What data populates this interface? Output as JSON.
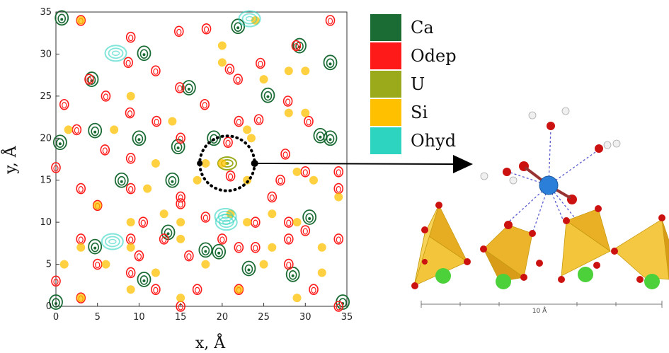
{
  "chart_data": {
    "type": "scatter",
    "xlabel": "x, Å",
    "ylabel": "y, Å",
    "xlim": [
      0,
      35
    ],
    "ylim": [
      0,
      35
    ],
    "xticks": [
      0,
      5,
      10,
      15,
      20,
      25,
      30,
      35
    ],
    "yticks": [
      0,
      5,
      10,
      15,
      20,
      25,
      30,
      35
    ],
    "legend": [
      {
        "name": "Ca",
        "color": "#1b6b35"
      },
      {
        "name": "Odep",
        "color": "#ff1a1a"
      },
      {
        "name": "U",
        "color": "#9aaa1a"
      },
      {
        "name": "Si",
        "color": "#ffc000"
      },
      {
        "name": "Ohyd",
        "color": "#2dd4bf"
      }
    ],
    "highlight": {
      "x": 20.6,
      "y": 17.0,
      "r": 3.0
    },
    "series": [
      {
        "name": "Ca",
        "color": "#1b6b35",
        "points": [
          [
            0.7,
            34.3
          ],
          [
            4.3,
            27.0
          ],
          [
            10.6,
            30.1
          ],
          [
            21.9,
            33.3
          ],
          [
            29.3,
            31.0
          ],
          [
            33,
            29
          ],
          [
            19.6,
            6.5
          ],
          [
            33,
            20
          ],
          [
            0.5,
            19.5
          ],
          [
            4.7,
            20.9
          ],
          [
            10,
            20
          ],
          [
            14.7,
            19
          ],
          [
            19,
            20
          ],
          [
            25.5,
            25.1
          ],
          [
            16,
            26
          ],
          [
            31.8,
            20.3
          ],
          [
            7.9,
            15
          ],
          [
            14,
            15
          ],
          [
            30.5,
            10.6
          ],
          [
            13.5,
            8.8
          ],
          [
            23.2,
            4.5
          ],
          [
            10.6,
            3.2
          ],
          [
            4.7,
            7.1
          ],
          [
            18,
            6.7
          ],
          [
            28.5,
            3.8
          ],
          [
            34.5,
            0.5
          ],
          [
            0,
            0.5
          ]
        ]
      },
      {
        "name": "Odep",
        "color": "#ff1a1a",
        "points": [
          [
            3,
            34
          ],
          [
            9,
            32
          ],
          [
            14.8,
            32.7
          ],
          [
            18.1,
            33
          ],
          [
            33,
            34
          ],
          [
            28.9,
            31
          ],
          [
            8.7,
            29
          ],
          [
            12,
            28
          ],
          [
            4,
            27
          ],
          [
            20.9,
            28.2
          ],
          [
            24.6,
            28.9
          ],
          [
            21.9,
            27.0
          ],
          [
            6.0,
            25
          ],
          [
            14.9,
            26
          ],
          [
            17.9,
            24
          ],
          [
            24.4,
            22.2
          ],
          [
            27.9,
            24.4
          ],
          [
            1,
            24
          ],
          [
            8.9,
            23
          ],
          [
            12.1,
            22
          ],
          [
            22,
            22
          ],
          [
            30.4,
            22
          ],
          [
            2.5,
            21
          ],
          [
            5.9,
            18.6
          ],
          [
            9,
            17.6
          ],
          [
            15,
            20
          ],
          [
            20.7,
            19.5
          ],
          [
            27.6,
            18.1
          ],
          [
            0,
            16.5
          ],
          [
            3,
            14
          ],
          [
            9,
            14
          ],
          [
            15,
            13
          ],
          [
            21,
            15.5
          ],
          [
            27,
            15
          ],
          [
            30,
            16
          ],
          [
            34,
            16
          ],
          [
            34,
            14
          ],
          [
            5,
            12
          ],
          [
            10.5,
            10
          ],
          [
            15,
            12.2
          ],
          [
            18,
            10.6
          ],
          [
            26,
            13
          ],
          [
            24,
            10
          ],
          [
            28,
            10
          ],
          [
            30,
            9
          ],
          [
            3,
            8
          ],
          [
            9,
            8
          ],
          [
            13,
            8
          ],
          [
            20,
            8
          ],
          [
            28,
            8
          ],
          [
            34,
            8
          ],
          [
            10,
            6
          ],
          [
            16,
            6
          ],
          [
            22,
            7
          ],
          [
            24,
            7
          ],
          [
            0,
            3
          ],
          [
            5,
            5
          ],
          [
            9,
            4
          ],
          [
            12,
            2
          ],
          [
            17,
            2
          ],
          [
            22,
            2
          ],
          [
            28,
            5
          ],
          [
            31,
            2
          ],
          [
            3,
            1
          ],
          [
            15,
            0
          ],
          [
            34,
            0
          ]
        ]
      },
      {
        "name": "U",
        "color": "#9aaa1a",
        "points": [
          [
            20.6,
            17.0
          ]
        ]
      },
      {
        "name": "Si",
        "color": "#ffc000",
        "points": [
          [
            3,
            34
          ],
          [
            24,
            34
          ],
          [
            20,
            29
          ],
          [
            28,
            28
          ],
          [
            30,
            28
          ],
          [
            20,
            31
          ],
          [
            9,
            25
          ],
          [
            25,
            27
          ],
          [
            1.5,
            21
          ],
          [
            7,
            21
          ],
          [
            14,
            22
          ],
          [
            23,
            21
          ],
          [
            28,
            23
          ],
          [
            30,
            23
          ],
          [
            20,
            17
          ],
          [
            23.5,
            20
          ],
          [
            12,
            17
          ],
          [
            18,
            17
          ],
          [
            29,
            16
          ],
          [
            11,
            14
          ],
          [
            17,
            15
          ],
          [
            23,
            15
          ],
          [
            31,
            15
          ],
          [
            5,
            12
          ],
          [
            13,
            11
          ],
          [
            21,
            11
          ],
          [
            26,
            11
          ],
          [
            34,
            13
          ],
          [
            9,
            10
          ],
          [
            15,
            10
          ],
          [
            23,
            10
          ],
          [
            29,
            10
          ],
          [
            3,
            7
          ],
          [
            9,
            7
          ],
          [
            15,
            8
          ],
          [
            26,
            7
          ],
          [
            32,
            7
          ],
          [
            1,
            5
          ],
          [
            6,
            5
          ],
          [
            12,
            4
          ],
          [
            18,
            5
          ],
          [
            25,
            5
          ],
          [
            32,
            4
          ],
          [
            3,
            1
          ],
          [
            9,
            2
          ],
          [
            15,
            1
          ],
          [
            22,
            2
          ],
          [
            29,
            1
          ]
        ]
      },
      {
        "name": "Ohyd",
        "color": "#2dd4bf",
        "points": [
          [
            7.2,
            30.1
          ],
          [
            23.3,
            34.2
          ],
          [
            20.4,
            10.7
          ],
          [
            6.8,
            7.7
          ],
          [
            20.5,
            10.0
          ]
        ]
      }
    ]
  }
}
